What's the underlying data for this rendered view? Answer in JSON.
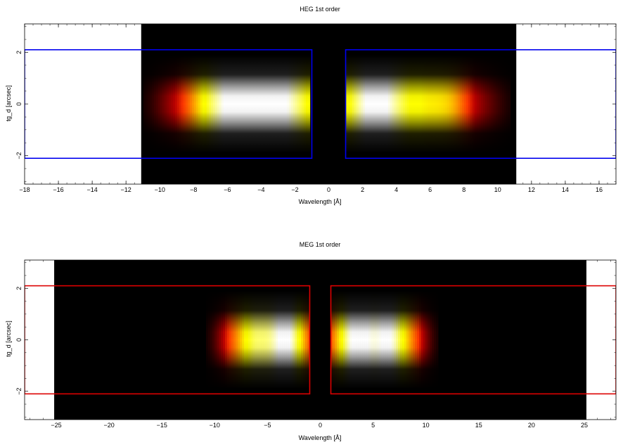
{
  "chart_data": [
    {
      "type": "heatmap",
      "title": "HEG 1st order",
      "xlabel": "Wavelength [Å]",
      "ylabel": "tg_d [arcsec]",
      "xlim": [
        -18,
        17
      ],
      "ylim": [
        -3.1,
        3.1
      ],
      "x_ticks": [
        -18,
        -16,
        -14,
        -12,
        -10,
        -8,
        -6,
        -4,
        -2,
        0,
        2,
        4,
        6,
        8,
        10,
        12,
        14,
        16
      ],
      "x_tick_labels": [
        "−18",
        "−16",
        "−14",
        "−12",
        "−10",
        "−8",
        "−6",
        "−4",
        "−2",
        "0",
        "2",
        "4",
        "6",
        "8",
        "10",
        "12",
        "14",
        "16"
      ],
      "y_ticks": [
        -2,
        0,
        2
      ],
      "y_tick_labels": [
        "−2",
        "0",
        "2"
      ],
      "image_extent_x": [
        -11.1,
        11.1
      ],
      "colormap": "heat",
      "background": "#000000",
      "gap_x": [
        -1.0,
        1.0
      ],
      "bright_features": [
        {
          "x": -3.0,
          "width": 2.2,
          "amplitude": 1.0
        },
        {
          "x": -5.5,
          "width": 1.2,
          "amplitude": 0.55
        },
        {
          "x": -7.3,
          "width": 0.9,
          "amplitude": 0.4
        },
        {
          "x": -9.0,
          "width": 1.0,
          "amplitude": 0.2
        },
        {
          "x": 2.8,
          "width": 1.6,
          "amplitude": 1.0
        },
        {
          "x": 5.8,
          "width": 1.2,
          "amplitude": 0.45
        },
        {
          "x": 7.3,
          "width": 0.9,
          "amplitude": 0.35
        },
        {
          "x": 9.0,
          "width": 1.0,
          "amplitude": 0.15
        }
      ],
      "regions": [
        {
          "x": [
            -18,
            -1
          ],
          "y": [
            -2.1,
            2.1
          ],
          "color": "#0000ee"
        },
        {
          "x": [
            1,
            17
          ],
          "y": [
            -2.1,
            2.1
          ],
          "color": "#0000ee"
        }
      ]
    },
    {
      "type": "heatmap",
      "title": "MEG 1st order",
      "xlabel": "Wavelength [Å]",
      "ylabel": "tg_d [arcsec]",
      "xlim": [
        -28,
        28
      ],
      "ylim": [
        -3.1,
        3.1
      ],
      "x_ticks": [
        -25,
        -20,
        -15,
        -10,
        -5,
        0,
        5,
        10,
        15,
        20,
        25
      ],
      "x_tick_labels": [
        "−25",
        "−20",
        "−15",
        "−10",
        "−5",
        "0",
        "5",
        "10",
        "15",
        "20",
        "25"
      ],
      "y_ticks": [
        -2,
        0,
        2
      ],
      "y_tick_labels": [
        "−2",
        "0",
        "2"
      ],
      "image_extent_x": [
        -25.2,
        25.2
      ],
      "colormap": "heat",
      "background": "#000000",
      "gap_x": [
        -0.9,
        0.9
      ],
      "bright_features": [
        {
          "x": -3.2,
          "width": 1.6,
          "amplitude": 1.0
        },
        {
          "x": -6.5,
          "width": 1.3,
          "amplitude": 0.7
        },
        {
          "x": -8.8,
          "width": 1.0,
          "amplitude": 0.2
        },
        {
          "x": 3.3,
          "width": 1.7,
          "amplitude": 1.0
        },
        {
          "x": 6.8,
          "width": 1.4,
          "amplitude": 0.85
        },
        {
          "x": 9.2,
          "width": 1.0,
          "amplitude": 0.2
        }
      ],
      "regions": [
        {
          "x": [
            -28,
            -1
          ],
          "y": [
            -2.1,
            2.1
          ],
          "color": "#dd0000"
        },
        {
          "x": [
            1,
            28
          ],
          "y": [
            -2.1,
            2.1
          ],
          "color": "#dd0000"
        }
      ]
    }
  ]
}
